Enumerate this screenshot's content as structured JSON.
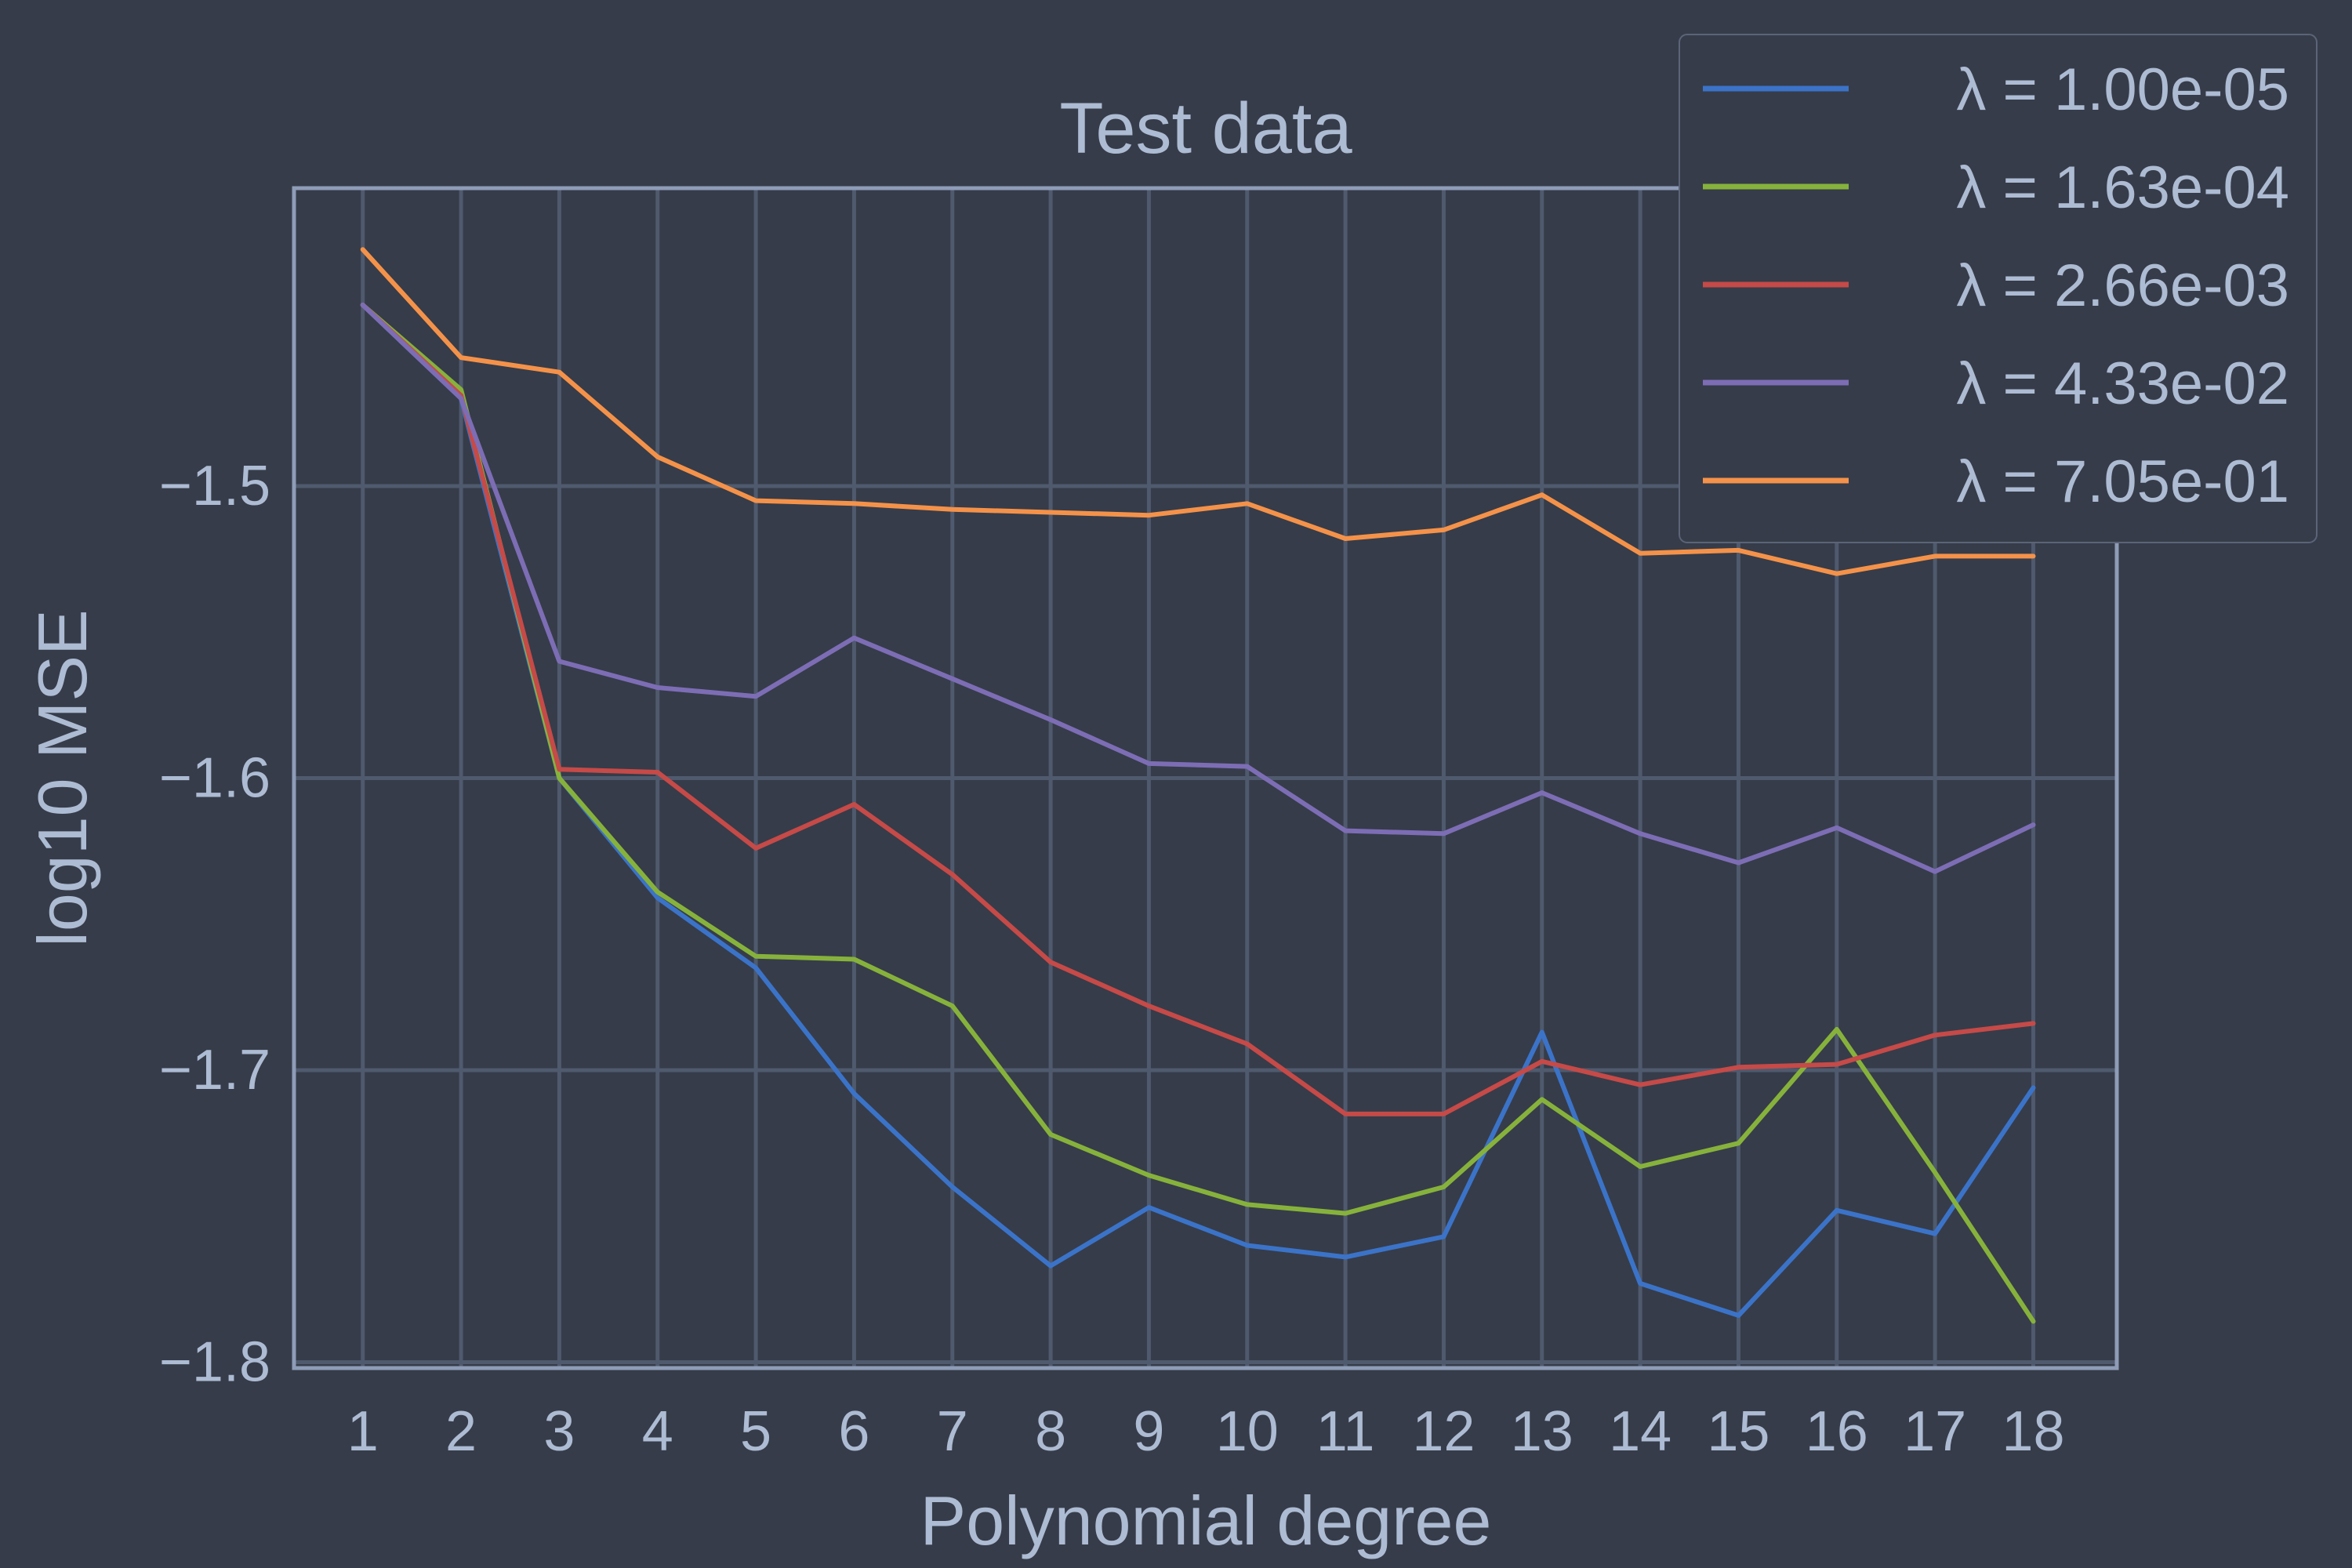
{
  "chart_data": {
    "type": "line",
    "title": "Test data",
    "xlabel": "Polynomial degree",
    "ylabel": "log10 MSE",
    "x": [
      1,
      2,
      3,
      4,
      5,
      6,
      7,
      8,
      9,
      10,
      11,
      12,
      13,
      14,
      15,
      16,
      17,
      18
    ],
    "x_tick_labels": [
      "1",
      "2",
      "3",
      "4",
      "5",
      "6",
      "7",
      "8",
      "9",
      "10",
      "11",
      "12",
      "13",
      "14",
      "15",
      "16",
      "17",
      "18"
    ],
    "xlim": [
      0.3,
      18.85
    ],
    "ylim": [
      -1.802,
      -1.398
    ],
    "y_ticks": [
      -1.5,
      -1.6,
      -1.7,
      -1.8
    ],
    "y_tick_labels": [
      "−1.5",
      "−1.6",
      "−1.7",
      "−1.8"
    ],
    "grid": true,
    "legend_position": "top-right",
    "background": "#363c49",
    "series": [
      {
        "name": "λ = 1.00e-05",
        "color": "#3b73c8",
        "values": [
          -1.438,
          -1.47,
          -1.6,
          -1.641,
          -1.665,
          -1.708,
          -1.74,
          -1.767,
          -1.747,
          -1.76,
          -1.764,
          -1.757,
          -1.687,
          -1.773,
          -1.784,
          -1.748,
          -1.756,
          -1.706
        ]
      },
      {
        "name": "λ = 1.63e-04",
        "color": "#86b23c",
        "values": [
          -1.438,
          -1.467,
          -1.6,
          -1.639,
          -1.661,
          -1.662,
          -1.678,
          -1.722,
          -1.736,
          -1.746,
          -1.749,
          -1.74,
          -1.71,
          -1.733,
          -1.725,
          -1.686,
          -1.735,
          -1.786
        ]
      },
      {
        "name": "λ = 2.66e-03",
        "color": "#c54a48",
        "values": [
          -1.438,
          -1.469,
          -1.597,
          -1.598,
          -1.624,
          -1.609,
          -1.633,
          -1.663,
          -1.678,
          -1.691,
          -1.715,
          -1.715,
          -1.697,
          -1.705,
          -1.699,
          -1.698,
          -1.688,
          -1.684
        ]
      },
      {
        "name": "λ = 4.33e-02",
        "color": "#7d6db5",
        "values": [
          -1.438,
          -1.47,
          -1.56,
          -1.569,
          -1.572,
          -1.552,
          -1.566,
          -1.58,
          -1.595,
          -1.596,
          -1.618,
          -1.619,
          -1.605,
          -1.619,
          -1.629,
          -1.617,
          -1.632,
          -1.616
        ]
      },
      {
        "name": "λ = 7.05e-01",
        "color": "#f4924a",
        "values": [
          -1.419,
          -1.456,
          -1.461,
          -1.49,
          -1.505,
          -1.506,
          -1.508,
          -1.509,
          -1.51,
          -1.506,
          -1.518,
          -1.515,
          -1.503,
          -1.523,
          -1.522,
          -1.53,
          -1.524,
          -1.524
        ]
      }
    ]
  }
}
